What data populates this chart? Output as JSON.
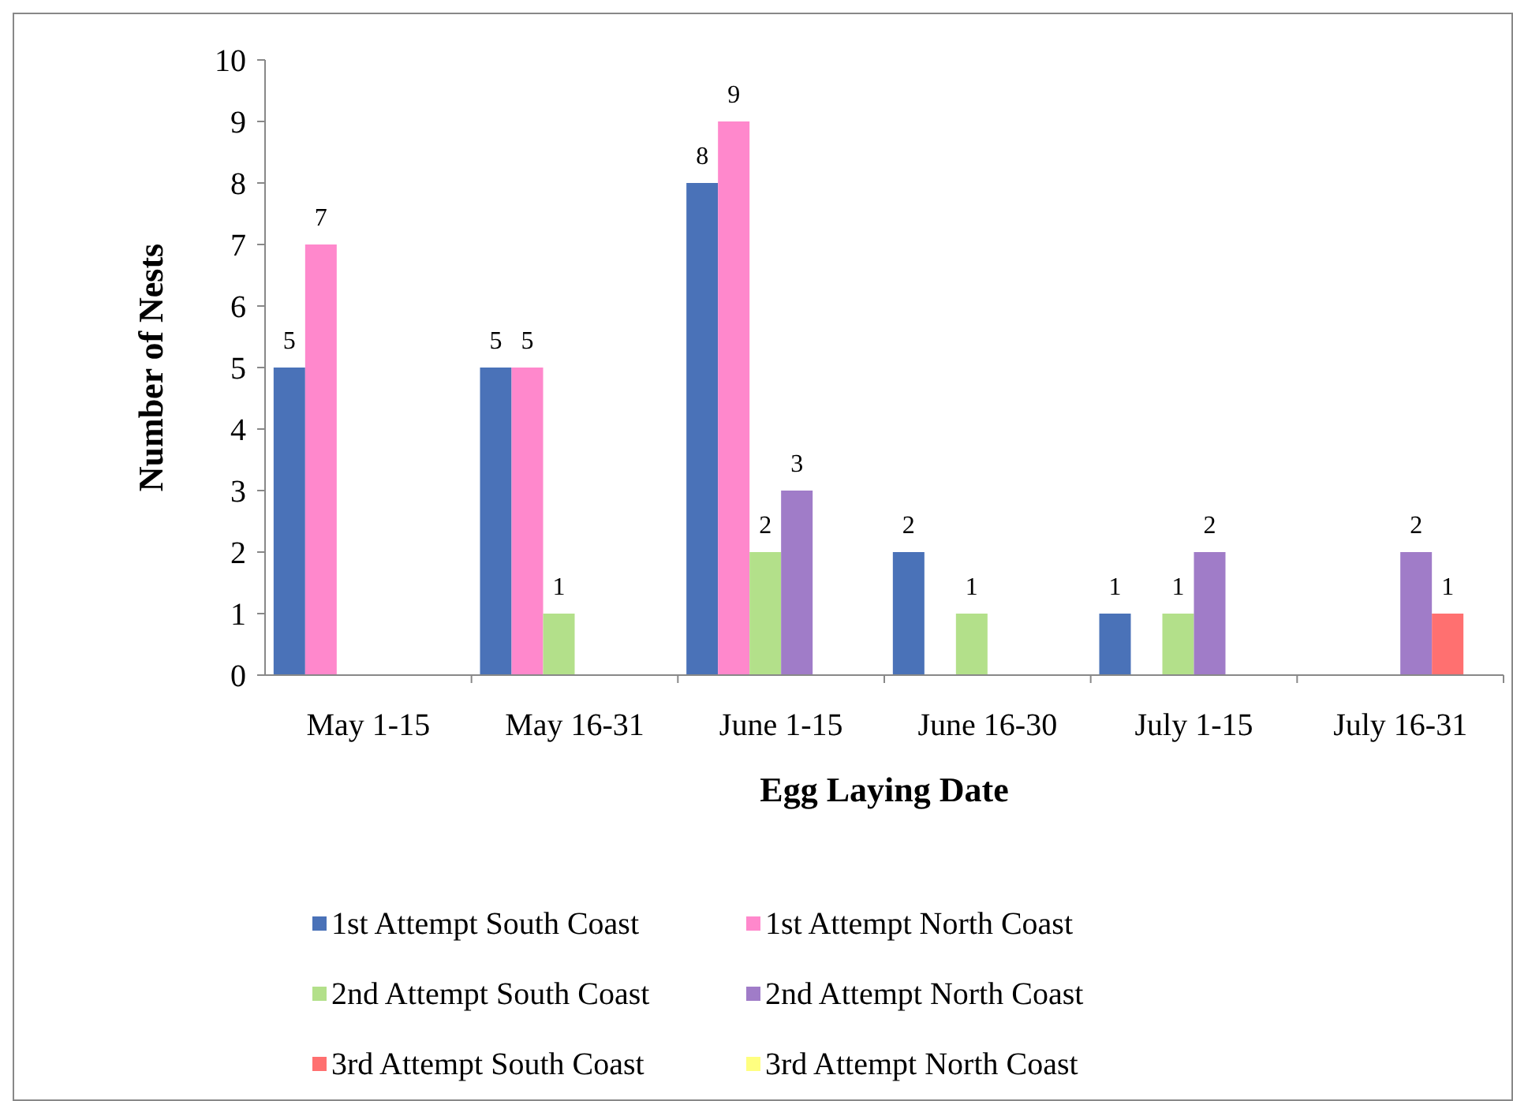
{
  "chart_data": {
    "type": "bar",
    "xlabel": "Egg Laying Date",
    "ylabel": "Number of Nests",
    "categories": [
      "May 1-15",
      "May 16-31",
      "June 1-15",
      "June 16-30",
      "July 1-15",
      "July 16-31"
    ],
    "series": [
      {
        "name": "1st Attempt South Coast",
        "color": "#4a72b8",
        "values": [
          5,
          5,
          8,
          2,
          1,
          null
        ]
      },
      {
        "name": "1st Attempt North Coast",
        "color": "#ff88cc",
        "values": [
          7,
          5,
          9,
          null,
          null,
          null
        ]
      },
      {
        "name": "2nd Attempt South Coast",
        "color": "#b3e08a",
        "values": [
          null,
          1,
          2,
          1,
          1,
          null
        ]
      },
      {
        "name": "2nd Attempt North Coast",
        "color": "#a07cc8",
        "values": [
          null,
          null,
          3,
          null,
          2,
          2
        ]
      },
      {
        "name": "3rd Attempt South Coast",
        "color": "#ff7070",
        "values": [
          null,
          null,
          null,
          null,
          null,
          1
        ]
      },
      {
        "name": "3rd Attempt North Coast",
        "color": "#ffff80",
        "values": [
          null,
          null,
          null,
          null,
          null,
          null
        ]
      }
    ],
    "ylim": [
      0,
      10
    ],
    "yticks": [
      0,
      1,
      2,
      3,
      4,
      5,
      6,
      7,
      8,
      9,
      10
    ],
    "grid": false,
    "legend": "bottom",
    "data_labels": true
  }
}
